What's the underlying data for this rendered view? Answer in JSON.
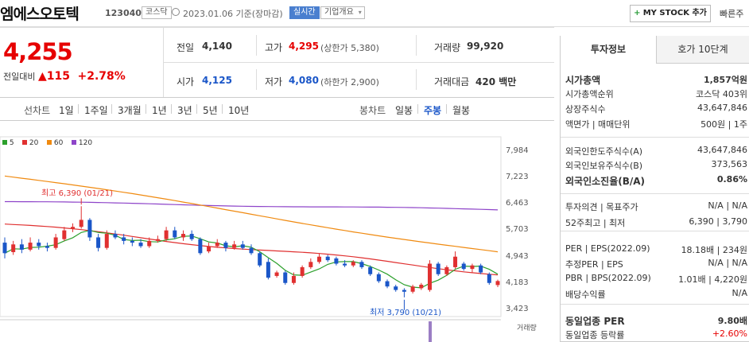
{
  "header": {
    "title": "엠에스오토텍",
    "code": "123040",
    "market_badge": "코스닥",
    "date_text": "2023.01.06  기준(장마감)",
    "realtime_badge": "실시간",
    "overview_badge": "기업개요",
    "mystock_label": "MY STOCK 추가",
    "quick_label": "빠른주"
  },
  "price": {
    "current": "4,255",
    "change_label": "전일대비",
    "change_abs": "115",
    "change_pct": "+2.78%"
  },
  "quote": {
    "prev_close_label": "전일",
    "prev_close": "4,140",
    "high_label": "고가",
    "high": "4,295",
    "upper_limit": "(상한가 5,380)",
    "volume_label": "거래량",
    "volume": "99,920",
    "open_label": "시가",
    "open": "4,125",
    "low_label": "저가",
    "low": "4,080",
    "lower_limit": "(하한가 2,900)",
    "amount_label": "거래대금",
    "amount": "420 백만"
  },
  "period_bar": {
    "left_label": "선차트",
    "left_items": [
      "1일",
      "1주일",
      "3개월",
      "1년",
      "3년",
      "5년",
      "10년"
    ],
    "right_label": "봉차트",
    "right_items": [
      "일봉",
      "주봉",
      "월봉"
    ],
    "active": "주봉"
  },
  "chart_data": {
    "type": "candlestick",
    "interval": "weekly",
    "legend": [
      {
        "name": "5",
        "color": "#2ca02c"
      },
      {
        "name": "20",
        "color": "#e03030"
      },
      {
        "name": "60",
        "color": "#f08a10"
      },
      {
        "name": "120",
        "color": "#8e44c9"
      }
    ],
    "y_ticks": [
      "7,984",
      "7,223",
      "6,463",
      "5,703",
      "4,943",
      "4,183",
      "3,423"
    ],
    "ylim": [
      3423,
      7984
    ],
    "annotations": {
      "high": "최고 6,390 (01/21)",
      "low": "최저 3,790 (10/21)"
    },
    "volume_label": "거래량",
    "ma_lines": {
      "ma60_start": 7250,
      "ma60_end": 5080,
      "ma120_start": 6520,
      "ma120_end": 6290,
      "ma20_start": 5880,
      "ma20_end": 4480
    },
    "candles": [
      {
        "o": 5350,
        "c": 5050,
        "h": 5500,
        "l": 4900
      },
      {
        "o": 5080,
        "c": 5300,
        "h": 5400,
        "l": 5000
      },
      {
        "o": 5300,
        "c": 5150,
        "h": 5450,
        "l": 5050
      },
      {
        "o": 5150,
        "c": 5350,
        "h": 5500,
        "l": 5100
      },
      {
        "o": 5350,
        "c": 5250,
        "h": 5450,
        "l": 5150
      },
      {
        "o": 5250,
        "c": 5200,
        "h": 5350,
        "l": 5100
      },
      {
        "o": 5200,
        "c": 5500,
        "h": 5600,
        "l": 5150
      },
      {
        "o": 5450,
        "c": 5700,
        "h": 5800,
        "l": 5400
      },
      {
        "o": 5750,
        "c": 5800,
        "h": 5900,
        "l": 5650
      },
      {
        "o": 5800,
        "c": 6000,
        "h": 6390,
        "l": 5750
      },
      {
        "o": 6000,
        "c": 5500,
        "h": 6050,
        "l": 5400
      },
      {
        "o": 5500,
        "c": 5200,
        "h": 5600,
        "l": 5100
      },
      {
        "o": 5200,
        "c": 5600,
        "h": 5700,
        "l": 5150
      },
      {
        "o": 5600,
        "c": 5500,
        "h": 5700,
        "l": 5450
      },
      {
        "o": 5500,
        "c": 5400,
        "h": 5600,
        "l": 5300
      },
      {
        "o": 5400,
        "c": 5350,
        "h": 5500,
        "l": 5250
      },
      {
        "o": 5350,
        "c": 5250,
        "h": 5450,
        "l": 5200
      },
      {
        "o": 5250,
        "c": 5400,
        "h": 5500,
        "l": 5200
      },
      {
        "o": 5400,
        "c": 5450,
        "h": 5550,
        "l": 5350
      },
      {
        "o": 5450,
        "c": 5700,
        "h": 5800,
        "l": 5400
      },
      {
        "o": 5700,
        "c": 5500,
        "h": 5800,
        "l": 5450
      },
      {
        "o": 5500,
        "c": 5600,
        "h": 5700,
        "l": 5400
      },
      {
        "o": 5600,
        "c": 5450,
        "h": 5700,
        "l": 5400
      },
      {
        "o": 5450,
        "c": 5050,
        "h": 5500,
        "l": 5000
      },
      {
        "o": 5100,
        "c": 5250,
        "h": 5350,
        "l": 5050
      },
      {
        "o": 5250,
        "c": 5350,
        "h": 5450,
        "l": 5200
      },
      {
        "o": 5350,
        "c": 5200,
        "h": 5400,
        "l": 5100
      },
      {
        "o": 5200,
        "c": 5300,
        "h": 5400,
        "l": 5150
      },
      {
        "o": 5300,
        "c": 5200,
        "h": 5400,
        "l": 5150
      },
      {
        "o": 5200,
        "c": 5050,
        "h": 5300,
        "l": 5000
      },
      {
        "o": 5050,
        "c": 4700,
        "h": 5100,
        "l": 4650
      },
      {
        "o": 4800,
        "c": 4350,
        "h": 4900,
        "l": 4300
      },
      {
        "o": 4400,
        "c": 4500,
        "h": 4550,
        "l": 4350
      },
      {
        "o": 4500,
        "c": 4200,
        "h": 4550,
        "l": 4150
      },
      {
        "o": 4200,
        "c": 4400,
        "h": 4500,
        "l": 4150
      },
      {
        "o": 4400,
        "c": 4650,
        "h": 4700,
        "l": 4350
      },
      {
        "o": 4650,
        "c": 4800,
        "h": 4900,
        "l": 4600
      },
      {
        "o": 4800,
        "c": 4950,
        "h": 5050,
        "l": 4750
      },
      {
        "o": 4950,
        "c": 4850,
        "h": 5000,
        "l": 4800
      },
      {
        "o": 4900,
        "c": 4750,
        "h": 4950,
        "l": 4700
      },
      {
        "o": 4750,
        "c": 4700,
        "h": 4850,
        "l": 4650
      },
      {
        "o": 4700,
        "c": 4800,
        "h": 4850,
        "l": 4650
      },
      {
        "o": 4800,
        "c": 4650,
        "h": 4850,
        "l": 4600
      },
      {
        "o": 4650,
        "c": 4450,
        "h": 4700,
        "l": 4400
      },
      {
        "o": 4450,
        "c": 4250,
        "h": 4500,
        "l": 4200
      },
      {
        "o": 4250,
        "c": 4100,
        "h": 4300,
        "l": 4050
      },
      {
        "o": 4100,
        "c": 4000,
        "h": 4150,
        "l": 3950
      },
      {
        "o": 4000,
        "c": 3950,
        "h": 4050,
        "l": 3790
      },
      {
        "o": 3950,
        "c": 4100,
        "h": 4150,
        "l": 3900
      },
      {
        "o": 4050,
        "c": 4150,
        "h": 4200,
        "l": 4000
      },
      {
        "o": 4000,
        "c": 4750,
        "h": 4850,
        "l": 3950
      },
      {
        "o": 4750,
        "c": 4450,
        "h": 4800,
        "l": 4400
      },
      {
        "o": 4450,
        "c": 4650,
        "h": 4700,
        "l": 4400
      },
      {
        "o": 4650,
        "c": 4950,
        "h": 5100,
        "l": 4600
      },
      {
        "o": 4750,
        "c": 4600,
        "h": 4800,
        "l": 4550
      },
      {
        "o": 4600,
        "c": 4700,
        "h": 4750,
        "l": 4500
      },
      {
        "o": 4700,
        "c": 4500,
        "h": 4750,
        "l": 4450
      },
      {
        "o": 4450,
        "c": 4200,
        "h": 4500,
        "l": 4150
      },
      {
        "o": 4140,
        "c": 4255,
        "h": 4295,
        "l": 4080
      }
    ]
  },
  "right_panel": {
    "tab_invest": "투자정보",
    "tab_hoga": "호가 10단계",
    "rows": [
      {
        "k": "시가총액",
        "v": "1,857억원",
        "bold": true
      },
      {
        "k": "시가총액순위",
        "v": "코스닥 403위"
      },
      {
        "k": "상장주식수",
        "v": "43,647,846"
      },
      {
        "k": "액면가 | 매매단위",
        "v": "500원 | 1주"
      },
      {
        "k": "외국인한도주식수(A)",
        "v": "43,647,846"
      },
      {
        "k": "외국인보유주식수(B)",
        "v": "373,563"
      },
      {
        "k": "외국인소진율(B/A)",
        "v": "0.86%",
        "bold": true
      },
      {
        "k": "투자의견 | 목표주가",
        "v": "N/A | N/A"
      },
      {
        "k": "52주최고 | 최저",
        "v": "6,390 | 3,790"
      },
      {
        "k": "PER | EPS(2022.09)",
        "v": "18.18배 | 234원"
      },
      {
        "k": "추정PER | EPS",
        "v": "N/A | N/A"
      },
      {
        "k": "PBR | BPS(2022.09)",
        "v": "1.01배 | 4,220원"
      },
      {
        "k": "배당수익률",
        "v": "N/A"
      },
      {
        "k": "동일업종 PER",
        "v": "9.80배",
        "bold": true
      },
      {
        "k": "동일업종 등락률",
        "v": "+2.60%",
        "red": true
      }
    ]
  }
}
